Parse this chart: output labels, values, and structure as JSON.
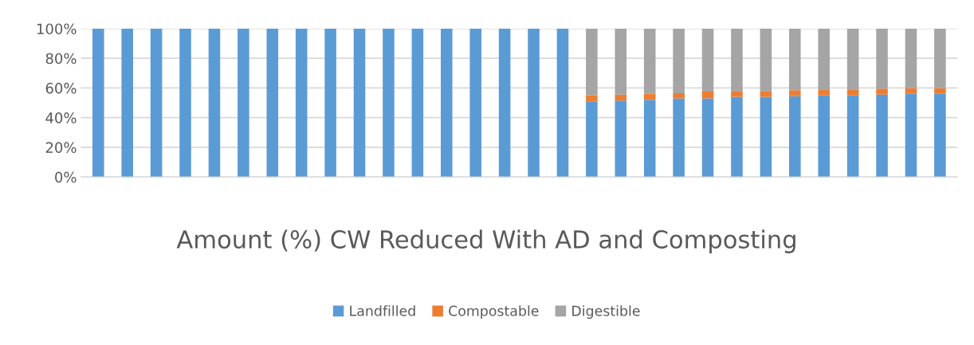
{
  "chart_data": {
    "type": "bar",
    "stacked": true,
    "title": "Amount (%) CW Reduced With AD and Composting",
    "categories": [
      null,
      null,
      null,
      null,
      null,
      null,
      null,
      null,
      null,
      null,
      null,
      null,
      null,
      null,
      null,
      null,
      null,
      null,
      null,
      null,
      null,
      null,
      null,
      null,
      null,
      null,
      null,
      null,
      null,
      null
    ],
    "series": [
      {
        "name": "Landfilled",
        "color": "#5b9bd5",
        "values": [
          100,
          100,
          100,
          100,
          100,
          100,
          100,
          100,
          100,
          100,
          100,
          100,
          100,
          100,
          100,
          100,
          100,
          51,
          51.5,
          52,
          53,
          53,
          54,
          54,
          54.5,
          55,
          55,
          55.5,
          56,
          56
        ]
      },
      {
        "name": "Compostable",
        "color": "#ed7d31",
        "values": [
          0,
          0,
          0,
          0,
          0,
          0,
          0,
          0,
          0,
          0,
          0,
          0,
          0,
          0,
          0,
          0,
          0,
          4,
          4,
          4,
          3.5,
          4.5,
          4,
          4,
          4,
          4,
          4,
          4,
          4,
          4
        ]
      },
      {
        "name": "Digestible",
        "color": "#a5a5a5",
        "values": [
          0,
          0,
          0,
          0,
          0,
          0,
          0,
          0,
          0,
          0,
          0,
          0,
          0,
          0,
          0,
          0,
          0,
          45,
          44.5,
          44,
          43.5,
          42.5,
          42,
          42,
          41.5,
          41,
          41,
          40.5,
          40,
          40
        ]
      }
    ],
    "ylim": [
      0,
      100
    ],
    "yticks": [
      {
        "value": 0,
        "label": "0%"
      },
      {
        "value": 20,
        "label": "20%"
      },
      {
        "value": 40,
        "label": "40%"
      },
      {
        "value": 60,
        "label": "60%"
      },
      {
        "value": 80,
        "label": "80%"
      },
      {
        "value": 100,
        "label": "100%"
      }
    ],
    "grid": "y",
    "legend": "bottom"
  }
}
